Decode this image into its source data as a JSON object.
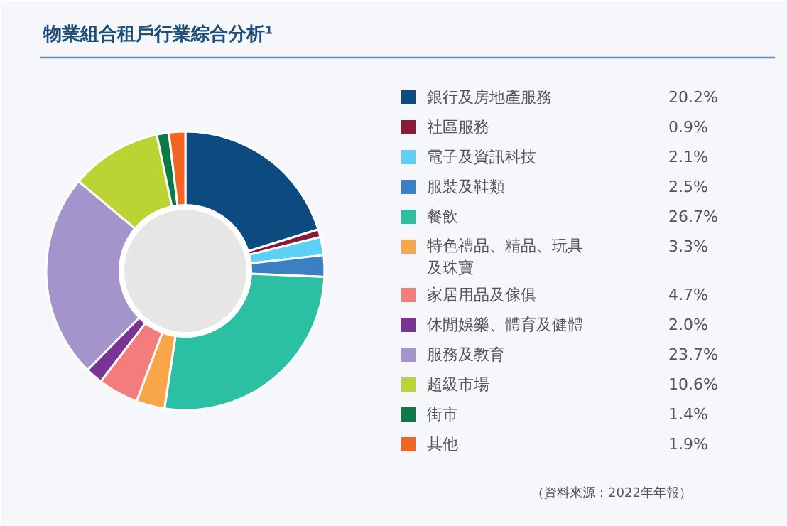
{
  "chart_data": {
    "type": "donut",
    "title": "物業組合租戶行業綜合分析¹",
    "categories": [
      "銀行及房地產服務",
      "社區服務",
      "電子及資訊科技",
      "服裝及鞋類",
      "餐飲",
      "特色禮品、精品、玩具及珠寶",
      "家居用品及傢俱",
      "休閒娛樂、體育及健體",
      "服務及教育",
      "超級市場",
      "街市",
      "其他"
    ],
    "values": [
      20.2,
      0.9,
      2.1,
      2.5,
      26.7,
      3.3,
      4.7,
      2.0,
      23.7,
      10.6,
      1.4,
      1.9
    ],
    "value_labels": [
      "20.2%",
      "0.9%",
      "2.1%",
      "2.5%",
      "26.7%",
      "3.3%",
      "4.7%",
      "2.0%",
      "23.7%",
      "10.6%",
      "1.4%",
      "1.9%"
    ],
    "colors": [
      "#0d4a80",
      "#8b1a3a",
      "#5dd0f5",
      "#3b7fc4",
      "#2bbfa4",
      "#f9a64a",
      "#f47c7c",
      "#7a3393",
      "#a394cc",
      "#bcd433",
      "#0b7a45",
      "#f26522"
    ],
    "legend": "right",
    "annotations": [
      "（資料來源：2022年年報）"
    ]
  }
}
